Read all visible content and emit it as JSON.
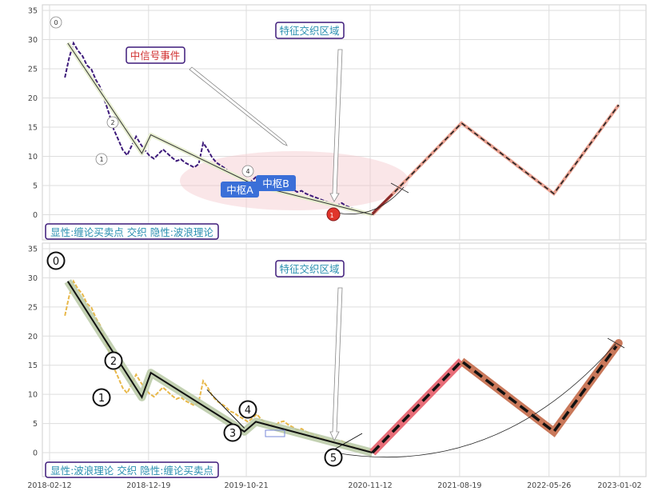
{
  "chart_data": [
    {
      "type": "line",
      "panel": "top",
      "y_ticks": [
        0,
        5,
        10,
        15,
        20,
        25,
        30,
        35
      ],
      "ylim": [
        -3.5,
        36
      ],
      "grid": true,
      "series": [
        {
          "role": "price",
          "color": "#3d1a7a",
          "x": [
            "2018-04-01",
            "2018-04-14",
            "2018-04-28",
            "2018-05-12",
            "2018-05-26",
            "2018-06-09",
            "2018-06-23",
            "2018-07-07",
            "2018-07-21",
            "2018-08-04",
            "2018-08-18",
            "2018-09-01",
            "2018-09-15",
            "2018-09-29",
            "2018-10-13",
            "2018-10-27",
            "2018-11-10",
            "2018-11-24",
            "2018-12-08",
            "2018-12-22",
            "2019-01-05",
            "2019-01-19",
            "2019-02-02",
            "2019-02-16",
            "2019-03-02",
            "2019-03-16",
            "2019-03-30",
            "2019-04-13",
            "2019-04-27",
            "2019-05-11",
            "2019-05-25",
            "2019-06-08",
            "2019-06-22",
            "2019-07-06",
            "2019-07-20",
            "2019-08-03",
            "2019-08-17",
            "2019-08-31",
            "2019-09-14",
            "2019-09-28",
            "2019-10-12",
            "2019-10-26",
            "2019-11-09",
            "2019-11-23",
            "2019-12-07",
            "2019-12-21",
            "2020-01-04",
            "2020-01-18",
            "2020-02-01",
            "2020-02-15",
            "2020-02-29",
            "2020-03-14",
            "2020-03-28",
            "2020-04-11",
            "2020-04-25",
            "2020-05-09",
            "2020-05-23",
            "2020-06-06",
            "2020-06-20",
            "2020-07-04",
            "2020-07-18",
            "2020-08-01",
            "2020-08-15",
            "2020-08-29",
            "2020-09-12",
            "2020-09-26",
            "2020-10-10",
            "2020-10-24",
            "2020-11-07",
            "2020-11-21"
          ],
          "values": [
            23.5,
            26.8,
            29.4,
            28.1,
            27.2,
            25.6,
            24.9,
            23.1,
            21.8,
            19.5,
            17.2,
            14.6,
            12.9,
            11.1,
            10.2,
            11.8,
            13.4,
            12.1,
            11.0,
            10.1,
            9.6,
            10.4,
            11.2,
            10.5,
            9.8,
            9.2,
            9.5,
            8.9,
            8.5,
            8.1,
            8.7,
            12.3,
            11.2,
            9.8,
            8.9,
            8.4,
            7.9,
            7.1,
            6.8,
            6.2,
            5.8,
            5.3,
            5.9,
            6.6,
            5.7,
            5.1,
            4.9,
            4.6,
            5.2,
            5.4,
            4.8,
            4.4,
            3.9,
            4.1,
            3.6,
            3.3,
            3.0,
            2.7,
            2.4,
            2.1,
            1.9,
            1.6,
            2.0,
            1.5,
            1.2,
            0.9,
            0.7,
            0.5,
            0.3,
            0.1
          ]
        }
      ],
      "zigzag": {
        "x": [
          "2018-04-10",
          "2018-11-28",
          "2018-12-26",
          "2019-11-20",
          "2020-11-19"
        ],
        "y": [
          29.4,
          10.5,
          13.7,
          5.0,
          0
        ]
      },
      "forecast": {
        "x": [
          "2020-11-19",
          "2021-08-25",
          "2022-06-10",
          "2022-12-30"
        ],
        "y": [
          0,
          15.7,
          3.6,
          18.8
        ]
      },
      "labels": {
        "wave_points": [
          "0",
          "1",
          "2",
          "4"
        ],
        "center_a": "中枢A",
        "center_b": "中枢B",
        "mid_signal": "中信号事件",
        "feature_zone": "特征交织区域",
        "end_marker": "1",
        "caption": "显性:缠论买卖点 交织 隐性:波浪理论"
      }
    },
    {
      "type": "line",
      "panel": "bottom",
      "y_ticks": [
        0,
        5,
        10,
        15,
        20,
        25,
        30,
        35
      ],
      "ylim": [
        -3.5,
        36
      ],
      "x_ticks": [
        "2018-02-12",
        "2018-12-19",
        "2019-10-21",
        "2020-11-12",
        "2021-08-19",
        "2022-05-26",
        "2023-01-02"
      ],
      "grid": true,
      "series": [
        {
          "role": "price",
          "color": "#e8b84a",
          "x": [
            "2018-04-01",
            "2018-04-14",
            "2018-04-28",
            "2018-05-12",
            "2018-05-26",
            "2018-06-09",
            "2018-06-23",
            "2018-07-07",
            "2018-07-21",
            "2018-08-04",
            "2018-08-18",
            "2018-09-01",
            "2018-09-15",
            "2018-09-29",
            "2018-10-13",
            "2018-10-27",
            "2018-11-10",
            "2018-11-24",
            "2018-12-08",
            "2018-12-22",
            "2019-01-05",
            "2019-01-19",
            "2019-02-02",
            "2019-02-16",
            "2019-03-02",
            "2019-03-16",
            "2019-03-30",
            "2019-04-13",
            "2019-04-27",
            "2019-05-11",
            "2019-05-25",
            "2019-06-08",
            "2019-06-22",
            "2019-07-06",
            "2019-07-20",
            "2019-08-03",
            "2019-08-17",
            "2019-08-31",
            "2019-09-14",
            "2019-09-28",
            "2019-10-12",
            "2019-10-26",
            "2019-11-09",
            "2019-11-23",
            "2019-12-07",
            "2019-12-21",
            "2020-01-04",
            "2020-01-18",
            "2020-02-01",
            "2020-02-15",
            "2020-02-29",
            "2020-03-14",
            "2020-03-28",
            "2020-04-11",
            "2020-04-25",
            "2020-05-09",
            "2020-05-23",
            "2020-06-06",
            "2020-06-20",
            "2020-07-04",
            "2020-07-18",
            "2020-08-01",
            "2020-08-15",
            "2020-08-29",
            "2020-09-12",
            "2020-09-26",
            "2020-10-10",
            "2020-10-24",
            "2020-11-07",
            "2020-11-21"
          ],
          "values": [
            23.5,
            26.8,
            29.4,
            28.1,
            27.2,
            25.6,
            24.9,
            23.1,
            21.8,
            19.5,
            17.2,
            14.6,
            12.9,
            11.1,
            10.2,
            11.8,
            13.4,
            12.1,
            11.0,
            10.1,
            9.6,
            10.4,
            11.2,
            10.5,
            9.8,
            9.2,
            9.5,
            8.9,
            8.5,
            8.1,
            8.7,
            12.3,
            11.2,
            9.8,
            8.9,
            8.4,
            7.9,
            7.1,
            6.8,
            6.2,
            5.8,
            5.3,
            5.9,
            6.6,
            5.7,
            5.1,
            4.9,
            4.6,
            5.2,
            5.4,
            4.8,
            4.4,
            3.9,
            4.1,
            3.6,
            3.3,
            3.0,
            2.7,
            2.4,
            2.1,
            1.9,
            1.6,
            2.0,
            1.5,
            1.2,
            0.9,
            0.7,
            0.5,
            0.3,
            0.1
          ]
        }
      ],
      "waves": {
        "x": [
          "2018-04-10",
          "2018-11-28",
          "2018-12-26",
          "2019-10-15",
          "2019-11-20",
          "2020-11-19"
        ],
        "y": [
          29.4,
          9.5,
          13.7,
          3.6,
          5.3,
          0
        ],
        "labels": [
          "0",
          "1",
          "2",
          "3",
          "4",
          "5"
        ]
      },
      "forecast": {
        "x": [
          "2020-11-19",
          "2021-08-25",
          "2022-06-10",
          "2022-12-30"
        ],
        "y": [
          0,
          15.7,
          3.6,
          18.8
        ]
      },
      "labels": {
        "feature_zone": "特征交织区域",
        "caption": "显性:波浪理论 交织 隐性:缠论买卖点"
      }
    }
  ]
}
